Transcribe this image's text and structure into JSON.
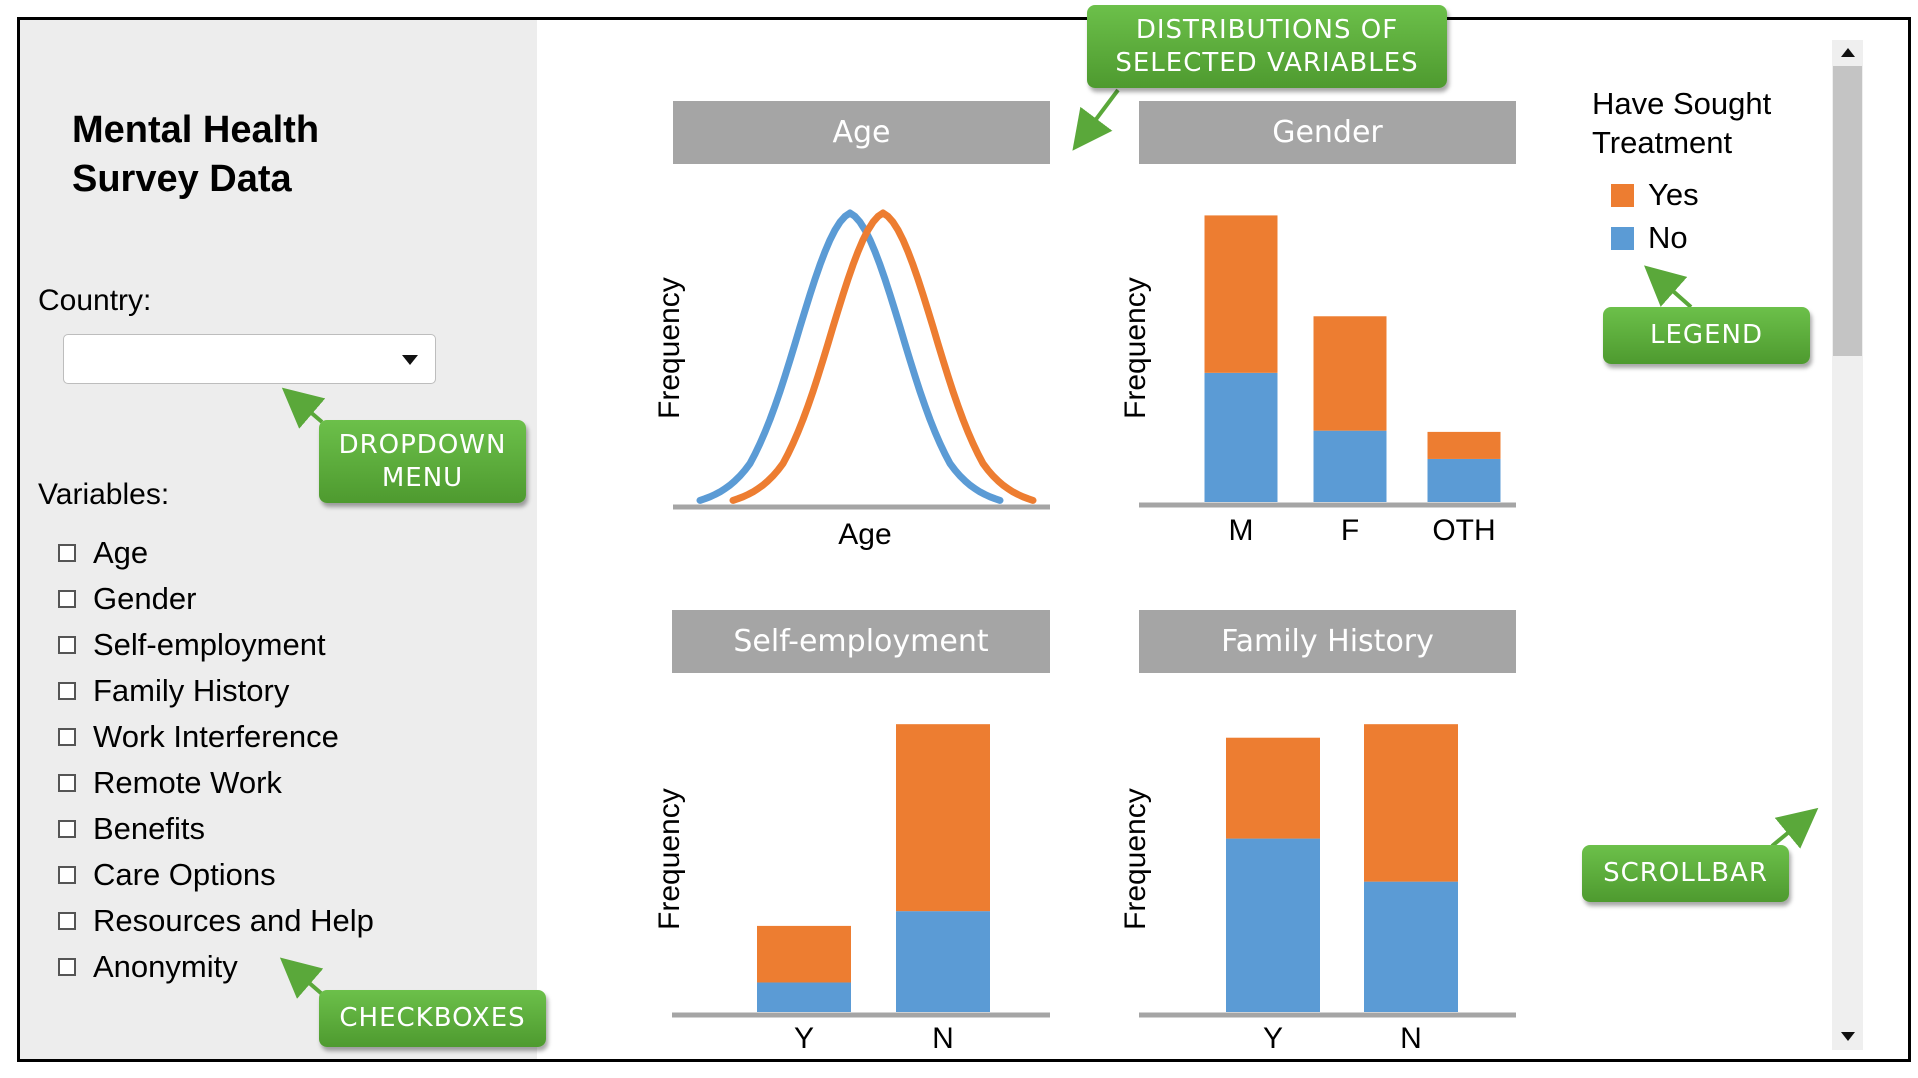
{
  "sidebar": {
    "title_line1": "Mental Health",
    "title_line2": "Survey Data",
    "country_label": "Country:",
    "country_value": "",
    "variables_label": "Variables:",
    "variables": [
      "Age",
      "Gender",
      "Self-employment",
      "Family History",
      "Work Interference",
      "Remote Work",
      "Benefits",
      "Care Options",
      "Resources and Help",
      "Anonymity"
    ]
  },
  "legend": {
    "title_line1": "Have Sought",
    "title_line2": "Treatment",
    "items": [
      {
        "label": "Yes",
        "color": "#ed7d31"
      },
      {
        "label": "No",
        "color": "#5b9bd5"
      }
    ]
  },
  "callouts": {
    "distributions": [
      "DISTRIBUTIONS OF",
      "SELECTED VARIABLES"
    ],
    "dropdown": [
      "DROPDOWN",
      "MENU"
    ],
    "legend": [
      "LEGEND"
    ],
    "scrollbar": [
      "SCROLLBAR"
    ],
    "checkboxes": [
      "CHECKBOXES"
    ]
  },
  "chart_data": [
    {
      "type": "line",
      "title": "Age",
      "xlabel": "Age",
      "ylabel": "Frequency",
      "x": [
        -3,
        -2,
        -1,
        0,
        1,
        2,
        3
      ],
      "series": [
        {
          "name": "No",
          "color": "#5b9bd5",
          "values": [
            0.0,
            0.14,
            0.61,
            1.0,
            0.61,
            0.14,
            0.0
          ]
        },
        {
          "name": "Yes",
          "color": "#ed7d31",
          "values": [
            0.0,
            0.14,
            0.61,
            1.0,
            0.61,
            0.14,
            0.0
          ]
        }
      ]
    },
    {
      "type": "bar",
      "stacked": true,
      "title": "Gender",
      "ylabel": "Frequency",
      "categories": [
        "M",
        "F",
        "OTH"
      ],
      "series": [
        {
          "name": "No",
          "color": "#5b9bd5",
          "values": [
            105,
            58,
            35
          ]
        },
        {
          "name": "Yes",
          "color": "#ed7d31",
          "values": [
            128,
            93,
            22
          ]
        }
      ],
      "ylim": [
        0,
        240
      ]
    },
    {
      "type": "bar",
      "stacked": true,
      "title": "Self-employment",
      "ylabel": "Frequency",
      "categories": [
        "Y",
        "N"
      ],
      "series": [
        {
          "name": "No",
          "color": "#5b9bd5",
          "values": [
            24,
            82
          ]
        },
        {
          "name": "Yes",
          "color": "#ed7d31",
          "values": [
            46,
            152
          ]
        }
      ],
      "ylim": [
        0,
        240
      ]
    },
    {
      "type": "bar",
      "stacked": true,
      "title": "Family History",
      "ylabel": "Frequency",
      "categories": [
        "Y",
        "N"
      ],
      "series": [
        {
          "name": "No",
          "color": "#5b9bd5",
          "values": [
            141,
            106
          ]
        },
        {
          "name": "Yes",
          "color": "#ed7d31",
          "values": [
            82,
            128
          ]
        }
      ],
      "ylim": [
        0,
        240
      ]
    }
  ]
}
